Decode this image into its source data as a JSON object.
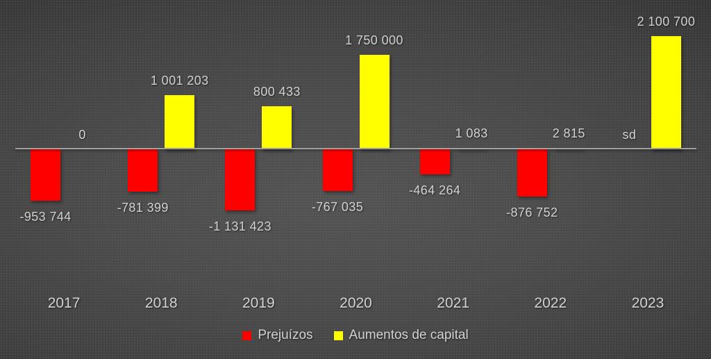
{
  "chart_data": {
    "type": "bar",
    "categories": [
      "2017",
      "2018",
      "2019",
      "2020",
      "2021",
      "2022",
      "2023"
    ],
    "series": [
      {
        "name": "Prejuízos",
        "color": "#ff0000",
        "values": [
          -953744,
          -781399,
          -1131423,
          -767035,
          -464264,
          -876752,
          null
        ],
        "labels": [
          "-953 744",
          "-781 399",
          "-1 131 423",
          "-767 035",
          "-464 264",
          "-876 752",
          "sd"
        ]
      },
      {
        "name": "Aumentos de capital",
        "color": "#ffff00",
        "values": [
          0,
          1001203,
          800433,
          1750000,
          1083,
          2815,
          2100700
        ],
        "labels": [
          "0",
          "1 001 203",
          "800 433",
          "1 750 000",
          "1 083",
          "2 815",
          "2 100 700"
        ]
      }
    ],
    "title": "",
    "xlabel": "",
    "ylabel": "",
    "ylim": [
      -1200000,
      2200000
    ],
    "grid": false,
    "legend_position": "bottom",
    "no_data_label": "sd",
    "axis_color": "#a0a0a0",
    "label_color": "#d2d2d2",
    "background_style": "dark-radial-gradient"
  }
}
